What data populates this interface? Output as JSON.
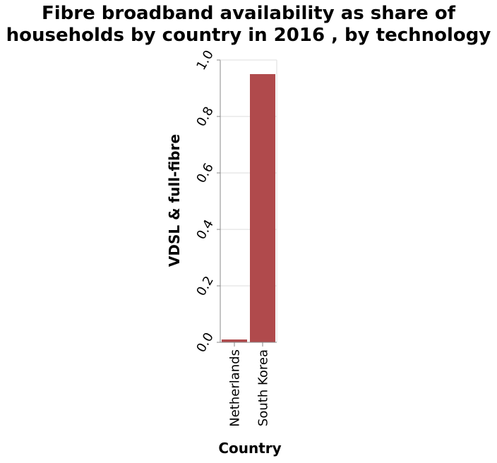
{
  "chart_data": {
    "type": "bar",
    "title_lines": [
      "Fibre broadband availability as share of",
      "households by country in 2016 , by technology"
    ],
    "xlabel": "Country",
    "ylabel": "VDSL & full-fibre",
    "categories": [
      "Netherlands",
      "South Korea"
    ],
    "values": [
      0.01,
      0.95
    ],
    "ylim": [
      0,
      1.0
    ],
    "yticks": [
      "0.0",
      "0.2",
      "0.4",
      "0.6",
      "0.8",
      "1.0"
    ],
    "grid": true,
    "bar_color": "#b04a4c"
  }
}
